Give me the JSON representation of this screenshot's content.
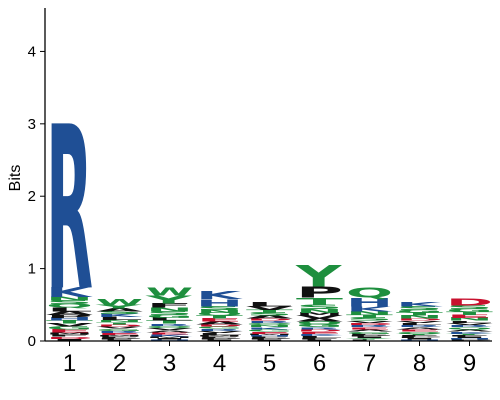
{
  "chart_data": {
    "type": "sequence-logo",
    "ylabel": "Bits",
    "ylim": [
      0,
      4.6
    ],
    "yticks": [
      0,
      1,
      2,
      3,
      4
    ],
    "positions": [
      "1",
      "2",
      "3",
      "4",
      "5",
      "6",
      "7",
      "8",
      "9"
    ],
    "colors": {
      "basic": "#1f4f95",
      "polar": "#1e8f3e",
      "hydrophobic": "#111111",
      "acidic": "#c8102e",
      "other": "#d97fa0"
    },
    "residue_colors": {
      "R": "basic",
      "K": "basic",
      "H": "basic",
      "Q": "polar",
      "N": "polar",
      "S": "polar",
      "T": "polar",
      "G": "polar",
      "Y": "polar",
      "C": "polar",
      "W": "polar",
      "D": "acidic",
      "E": "acidic",
      "A": "hydrophobic",
      "V": "hydrophobic",
      "L": "hydrophobic",
      "I": "hydrophobic",
      "P": "hydrophobic",
      "F": "hydrophobic",
      "M": "hydrophobic"
    },
    "columns": [
      {
        "position": "1",
        "letters": [
          {
            "aa": "R",
            "bits": 2.27
          },
          {
            "aa": "K",
            "bits": 0.13
          },
          {
            "aa": "A",
            "bits": 0.05
          },
          {
            "aa": "L",
            "bits": 0.05
          },
          {
            "aa": "Q",
            "bits": 0.05
          },
          {
            "aa": "S",
            "bits": 0.05
          },
          {
            "aa": "N",
            "bits": 0.05
          },
          {
            "aa": "E",
            "bits": 0.04
          },
          {
            "aa": "G",
            "bits": 0.04
          },
          {
            "aa": "V",
            "bits": 0.04
          },
          {
            "aa": "T",
            "bits": 0.04
          },
          {
            "aa": "H",
            "bits": 0.04
          },
          {
            "aa": "P",
            "bits": 0.04
          },
          {
            "aa": "I",
            "bits": 0.03
          },
          {
            "aa": "D",
            "bits": 0.03
          },
          {
            "aa": "F",
            "bits": 0.03
          },
          {
            "aa": "M",
            "bits": 0.03
          }
        ]
      },
      {
        "position": "2",
        "letters": [
          {
            "aa": "W",
            "bits": 0.08
          },
          {
            "aa": "Y",
            "bits": 0.05
          },
          {
            "aa": "L",
            "bits": 0.04
          },
          {
            "aa": "K",
            "bits": 0.04
          },
          {
            "aa": "S",
            "bits": 0.04
          },
          {
            "aa": "A",
            "bits": 0.04
          },
          {
            "aa": "E",
            "bits": 0.03
          },
          {
            "aa": "R",
            "bits": 0.03
          },
          {
            "aa": "G",
            "bits": 0.03
          },
          {
            "aa": "V",
            "bits": 0.03
          },
          {
            "aa": "D",
            "bits": 0.03
          },
          {
            "aa": "T",
            "bits": 0.03
          },
          {
            "aa": "N",
            "bits": 0.03
          },
          {
            "aa": "I",
            "bits": 0.02
          },
          {
            "aa": "P",
            "bits": 0.02
          },
          {
            "aa": "F",
            "bits": 0.02
          },
          {
            "aa": "M",
            "bits": 0.02
          }
        ]
      },
      {
        "position": "3",
        "letters": [
          {
            "aa": "Y",
            "bits": 0.11
          },
          {
            "aa": "W",
            "bits": 0.11
          },
          {
            "aa": "F",
            "bits": 0.06
          },
          {
            "aa": "S",
            "bits": 0.05
          },
          {
            "aa": "N",
            "bits": 0.05
          },
          {
            "aa": "T",
            "bits": 0.04
          },
          {
            "aa": "L",
            "bits": 0.04
          },
          {
            "aa": "G",
            "bits": 0.04
          },
          {
            "aa": "K",
            "bits": 0.03
          },
          {
            "aa": "E",
            "bits": 0.03
          },
          {
            "aa": "A",
            "bits": 0.03
          },
          {
            "aa": "V",
            "bits": 0.03
          },
          {
            "aa": "Q",
            "bits": 0.03
          },
          {
            "aa": "R",
            "bits": 0.03
          },
          {
            "aa": "H",
            "bits": 0.02
          },
          {
            "aa": "I",
            "bits": 0.02
          },
          {
            "aa": "M",
            "bits": 0.02
          }
        ]
      },
      {
        "position": "4",
        "letters": [
          {
            "aa": "K",
            "bits": 0.11
          },
          {
            "aa": "H",
            "bits": 0.1
          },
          {
            "aa": "S",
            "bits": 0.05
          },
          {
            "aa": "A",
            "bits": 0.04
          },
          {
            "aa": "E",
            "bits": 0.04
          },
          {
            "aa": "T",
            "bits": 0.04
          },
          {
            "aa": "Q",
            "bits": 0.04
          },
          {
            "aa": "N",
            "bits": 0.04
          },
          {
            "aa": "L",
            "bits": 0.03
          },
          {
            "aa": "V",
            "bits": 0.03
          },
          {
            "aa": "R",
            "bits": 0.03
          },
          {
            "aa": "G",
            "bits": 0.03
          },
          {
            "aa": "D",
            "bits": 0.03
          },
          {
            "aa": "I",
            "bits": 0.02
          },
          {
            "aa": "P",
            "bits": 0.02
          },
          {
            "aa": "F",
            "bits": 0.02
          },
          {
            "aa": "M",
            "bits": 0.02
          }
        ]
      },
      {
        "position": "5",
        "letters": [
          {
            "aa": "L",
            "bits": 0.06
          },
          {
            "aa": "V",
            "bits": 0.05
          },
          {
            "aa": "A",
            "bits": 0.04
          },
          {
            "aa": "S",
            "bits": 0.04
          },
          {
            "aa": "T",
            "bits": 0.04
          },
          {
            "aa": "E",
            "bits": 0.03
          },
          {
            "aa": "G",
            "bits": 0.03
          },
          {
            "aa": "K",
            "bits": 0.03
          },
          {
            "aa": "N",
            "bits": 0.03
          },
          {
            "aa": "Q",
            "bits": 0.03
          },
          {
            "aa": "R",
            "bits": 0.03
          },
          {
            "aa": "D",
            "bits": 0.03
          },
          {
            "aa": "I",
            "bits": 0.02
          },
          {
            "aa": "P",
            "bits": 0.02
          },
          {
            "aa": "F",
            "bits": 0.02
          },
          {
            "aa": "H",
            "bits": 0.02
          },
          {
            "aa": "M",
            "bits": 0.02
          }
        ]
      },
      {
        "position": "6",
        "letters": [
          {
            "aa": "Y",
            "bits": 0.3
          },
          {
            "aa": "T",
            "bits": 0.1
          },
          {
            "aa": "P",
            "bits": 0.15
          },
          {
            "aa": "S",
            "bits": 0.06
          },
          {
            "aa": "N",
            "bits": 0.05
          },
          {
            "aa": "G",
            "bits": 0.04
          },
          {
            "aa": "Q",
            "bits": 0.04
          },
          {
            "aa": "A",
            "bits": 0.04
          },
          {
            "aa": "V",
            "bits": 0.04
          },
          {
            "aa": "L",
            "bits": 0.03
          },
          {
            "aa": "K",
            "bits": 0.03
          },
          {
            "aa": "E",
            "bits": 0.03
          },
          {
            "aa": "D",
            "bits": 0.03
          },
          {
            "aa": "R",
            "bits": 0.03
          },
          {
            "aa": "I",
            "bits": 0.02
          },
          {
            "aa": "M",
            "bits": 0.04
          },
          {
            "aa": "F",
            "bits": 0.02
          }
        ]
      },
      {
        "position": "7",
        "letters": [
          {
            "aa": "Q",
            "bits": 0.13
          },
          {
            "aa": "H",
            "bits": 0.12
          },
          {
            "aa": "K",
            "bits": 0.07
          },
          {
            "aa": "N",
            "bits": 0.05
          },
          {
            "aa": "S",
            "bits": 0.04
          },
          {
            "aa": "T",
            "bits": 0.04
          },
          {
            "aa": "G",
            "bits": 0.03
          },
          {
            "aa": "A",
            "bits": 0.03
          },
          {
            "aa": "E",
            "bits": 0.03
          },
          {
            "aa": "R",
            "bits": 0.03
          },
          {
            "aa": "D",
            "bits": 0.03
          },
          {
            "aa": "V",
            "bits": 0.03
          },
          {
            "aa": "L",
            "bits": 0.02
          },
          {
            "aa": "Y",
            "bits": 0.02
          },
          {
            "aa": "I",
            "bits": 0.02
          },
          {
            "aa": "P",
            "bits": 0.02
          },
          {
            "aa": "F",
            "bits": 0.02
          }
        ]
      },
      {
        "position": "8",
        "letters": [
          {
            "aa": "K",
            "bits": 0.06
          },
          {
            "aa": "S",
            "bits": 0.05
          },
          {
            "aa": "N",
            "bits": 0.04
          },
          {
            "aa": "T",
            "bits": 0.04
          },
          {
            "aa": "G",
            "bits": 0.04
          },
          {
            "aa": "Q",
            "bits": 0.03
          },
          {
            "aa": "E",
            "bits": 0.03
          },
          {
            "aa": "A",
            "bits": 0.03
          },
          {
            "aa": "R",
            "bits": 0.03
          },
          {
            "aa": "L",
            "bits": 0.03
          },
          {
            "aa": "V",
            "bits": 0.03
          },
          {
            "aa": "D",
            "bits": 0.03
          },
          {
            "aa": "H",
            "bits": 0.02
          },
          {
            "aa": "I",
            "bits": 0.02
          },
          {
            "aa": "P",
            "bits": 0.02
          },
          {
            "aa": "F",
            "bits": 0.02
          },
          {
            "aa": "Y",
            "bits": 0.02
          }
        ]
      },
      {
        "position": "9",
        "letters": [
          {
            "aa": "D",
            "bits": 0.1
          },
          {
            "aa": "S",
            "bits": 0.05
          },
          {
            "aa": "N",
            "bits": 0.04
          },
          {
            "aa": "E",
            "bits": 0.04
          },
          {
            "aa": "T",
            "bits": 0.04
          },
          {
            "aa": "G",
            "bits": 0.04
          },
          {
            "aa": "K",
            "bits": 0.03
          },
          {
            "aa": "A",
            "bits": 0.03
          },
          {
            "aa": "Q",
            "bits": 0.03
          },
          {
            "aa": "R",
            "bits": 0.03
          },
          {
            "aa": "V",
            "bits": 0.03
          },
          {
            "aa": "L",
            "bits": 0.03
          },
          {
            "aa": "P",
            "bits": 0.02
          },
          {
            "aa": "H",
            "bits": 0.02
          },
          {
            "aa": "I",
            "bits": 0.02
          },
          {
            "aa": "F",
            "bits": 0.02
          },
          {
            "aa": "Y",
            "bits": 0.02
          }
        ]
      }
    ]
  }
}
